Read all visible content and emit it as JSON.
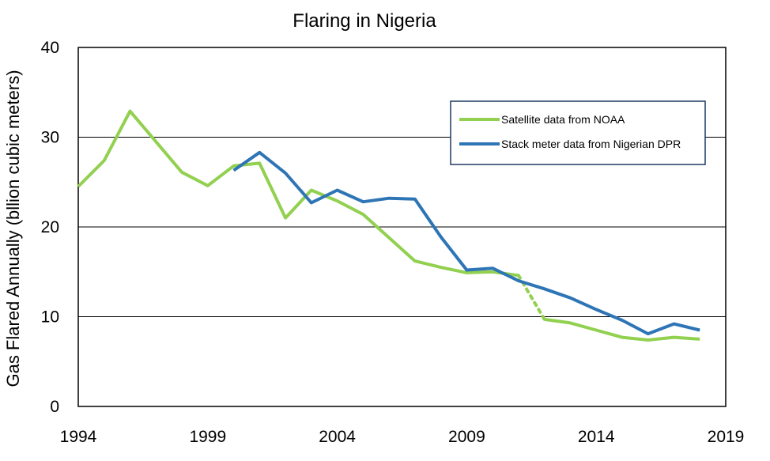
{
  "chart_data": {
    "type": "line",
    "title": "Flaring in Nigeria",
    "xlabel": "",
    "ylabel": "Gas Flared Annually (bllion cubic meters)",
    "xlim": [
      1994,
      2019
    ],
    "ylim": [
      0,
      40
    ],
    "x_ticks": [
      1994,
      1999,
      2004,
      2009,
      2014,
      2019
    ],
    "y_ticks": [
      0,
      10,
      20,
      30,
      40
    ],
    "grid": "horizontal",
    "legend_position": "upper-right",
    "series": [
      {
        "name": "Satellite data from NOAA",
        "color": "#92d050",
        "segments": [
          {
            "style": "solid",
            "x": [
              1994,
              1995,
              1996,
              1997,
              1998,
              1999,
              2000,
              2001,
              2002,
              2003,
              2004,
              2005,
              2006,
              2007,
              2008,
              2009,
              2010,
              2011
            ],
            "y": [
              24.5,
              27.4,
              32.9,
              29.5,
              26.1,
              24.6,
              26.8,
              27.1,
              21.0,
              24.1,
              22.9,
              21.4,
              18.8,
              16.2,
              15.5,
              14.9,
              15.0,
              14.6
            ]
          },
          {
            "style": "dotted",
            "x": [
              2011,
              2012
            ],
            "y": [
              14.6,
              9.7
            ]
          },
          {
            "style": "solid",
            "x": [
              2012,
              2013,
              2014,
              2015,
              2016,
              2017,
              2018
            ],
            "y": [
              9.7,
              9.3,
              8.5,
              7.7,
              7.4,
              7.7,
              7.5
            ]
          }
        ]
      },
      {
        "name": "Stack meter data from Nigerian DPR",
        "color": "#2e75b6",
        "segments": [
          {
            "style": "solid",
            "x": [
              2000,
              2001,
              2002,
              2003,
              2004,
              2005,
              2006,
              2007,
              2008,
              2009,
              2010,
              2011,
              2012,
              2013,
              2014,
              2015,
              2016,
              2017,
              2018
            ],
            "y": [
              26.3,
              28.3,
              26.0,
              22.7,
              24.1,
              22.8,
              23.2,
              23.1,
              18.9,
              15.2,
              15.4,
              14.0,
              13.1,
              12.1,
              10.8,
              9.6,
              8.1,
              9.2,
              8.5
            ]
          }
        ]
      }
    ]
  }
}
